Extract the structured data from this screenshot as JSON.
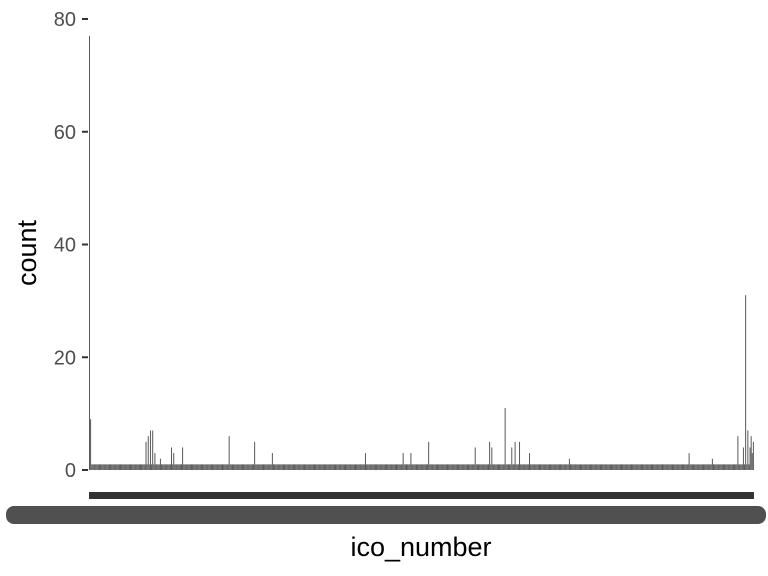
{
  "chart_data": {
    "type": "bar",
    "xlabel": "ico_number",
    "ylabel": "count",
    "ylim": [
      0,
      80
    ],
    "y_ticks": [
      0,
      20,
      40,
      60,
      80
    ],
    "y_tick_labels": [
      "0",
      "20",
      "40",
      "60",
      "80"
    ],
    "x_tick_labels_note": "x tick labels are illegible (hundreds of overlapping category labels)",
    "category_count": 600,
    "baseline_value": 1,
    "notable_values": [
      {
        "index": 0,
        "value": 77
      },
      {
        "index": 1,
        "value": 9
      },
      {
        "index": 51,
        "value": 5
      },
      {
        "index": 53,
        "value": 6
      },
      {
        "index": 55,
        "value": 7
      },
      {
        "index": 57,
        "value": 7
      },
      {
        "index": 59,
        "value": 3
      },
      {
        "index": 64,
        "value": 2
      },
      {
        "index": 74,
        "value": 4
      },
      {
        "index": 76,
        "value": 3
      },
      {
        "index": 84,
        "value": 4
      },
      {
        "index": 126,
        "value": 6
      },
      {
        "index": 149,
        "value": 5
      },
      {
        "index": 165,
        "value": 3
      },
      {
        "index": 249,
        "value": 3
      },
      {
        "index": 283,
        "value": 3
      },
      {
        "index": 290,
        "value": 3
      },
      {
        "index": 306,
        "value": 5
      },
      {
        "index": 348,
        "value": 4
      },
      {
        "index": 361,
        "value": 5
      },
      {
        "index": 363,
        "value": 4
      },
      {
        "index": 375,
        "value": 11
      },
      {
        "index": 381,
        "value": 4
      },
      {
        "index": 384,
        "value": 5
      },
      {
        "index": 388,
        "value": 5
      },
      {
        "index": 397,
        "value": 3
      },
      {
        "index": 433,
        "value": 2
      },
      {
        "index": 541,
        "value": 3
      },
      {
        "index": 562,
        "value": 2
      },
      {
        "index": 585,
        "value": 6
      },
      {
        "index": 590,
        "value": 4
      },
      {
        "index": 592,
        "value": 31
      },
      {
        "index": 594,
        "value": 7
      },
      {
        "index": 596,
        "value": 4
      },
      {
        "index": 597,
        "value": 6
      },
      {
        "index": 598,
        "value": 3
      },
      {
        "index": 599,
        "value": 5
      }
    ],
    "bar_color": "#595959",
    "grid": false,
    "legend": "none"
  }
}
